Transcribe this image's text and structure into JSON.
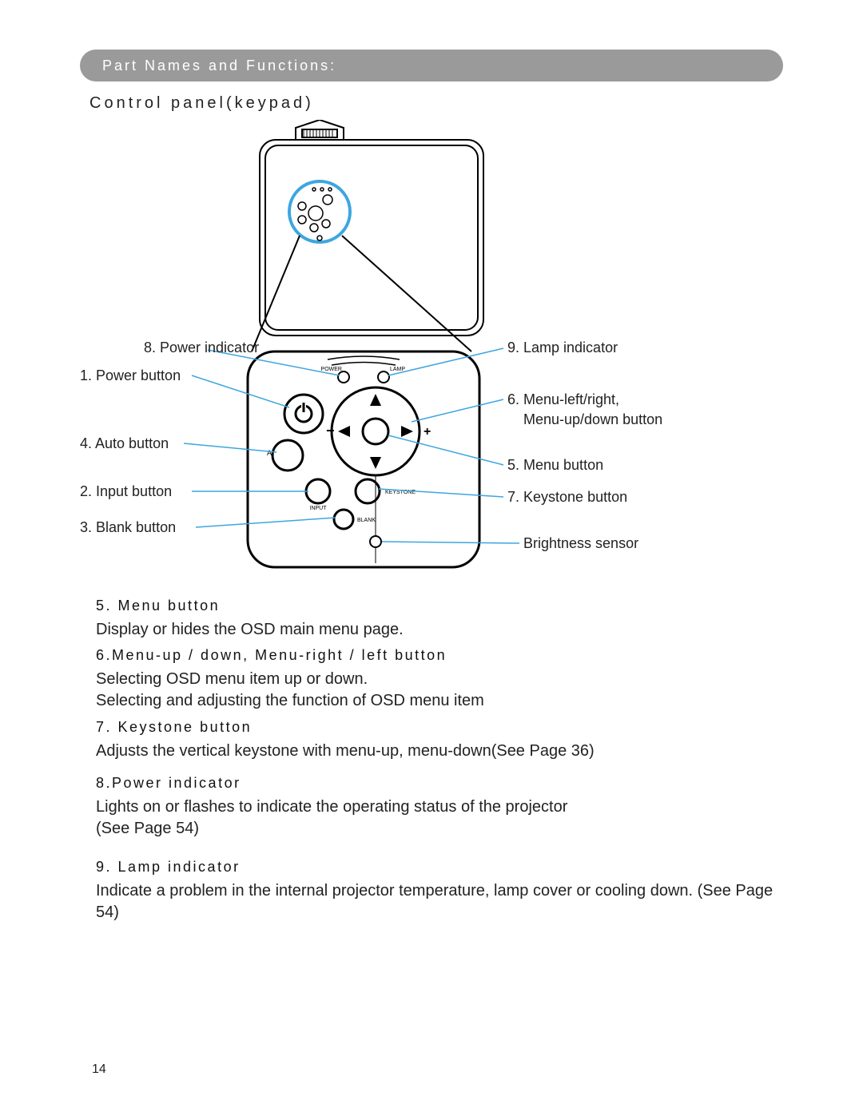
{
  "header": {
    "title": "Part Names and Functions:"
  },
  "subheading": "Control panel(keypad)",
  "callouts": {
    "left": {
      "power_indicator": "8. Power indicator",
      "power_button": "1. Power button",
      "auto_button": "4. Auto button",
      "input_button": "2. Input button",
      "blank_button": "3. Blank button"
    },
    "right": {
      "lamp_indicator": "9. Lamp indicator",
      "menu_lr": "6. Menu-left/right,",
      "menu_ud": "Menu-up/down button",
      "menu_button": "5. Menu button",
      "keystone_button": "7. Keystone button",
      "brightness_sensor": "Brightness sensor"
    }
  },
  "keypad_labels": {
    "power": "POWER",
    "lamp": "LAMP",
    "a": "A",
    "input": "INPUT",
    "blank": "BLANK",
    "keystone": "KEYSTONE",
    "minus": "−",
    "plus": "+"
  },
  "descriptions": [
    {
      "title": "5. Menu button",
      "body": "Display or hides the OSD main menu page."
    },
    {
      "title": "6.Menu-up / down, Menu-right /  left button",
      "body": "Selecting OSD menu item up or down.\nSelecting and adjusting the function of OSD menu item"
    },
    {
      "title": "7. Keystone button",
      "body": "Adjusts the vertical keystone with menu-up, menu-down(See Page 36)"
    },
    {
      "title": "8.Power indicator",
      "body": "Lights on or flashes to indicate the operating status of the projector\n(See Page 54)"
    },
    {
      "title": "9. Lamp indicator",
      "body": "Indicate a problem in the internal projector temperature, lamp cover or cooling down. (See Page 54)"
    }
  ],
  "desc_positions": [
    748,
    810,
    900,
    970,
    1075
  ],
  "page_number": "14",
  "colors": {
    "line": "#000000",
    "callout_line": "#3da6e0",
    "highlight_ring": "#3da6e0",
    "pill": "#9a9a9a"
  }
}
